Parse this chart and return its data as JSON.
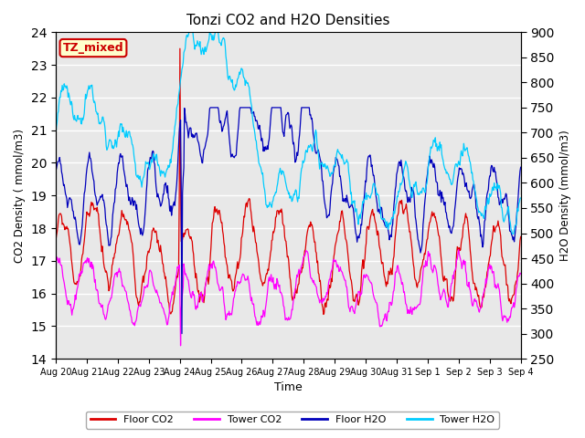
{
  "title": "Tonzi CO2 and H2O Densities",
  "xlabel": "Time",
  "ylabel_left": "CO2 Density ( mmol/m3)",
  "ylabel_right": "H2O Density (mmol/m3)",
  "ylim_left": [
    14.0,
    24.0
  ],
  "ylim_right": [
    250,
    900
  ],
  "yticks_left": [
    14.0,
    15.0,
    16.0,
    17.0,
    18.0,
    19.0,
    20.0,
    21.0,
    22.0,
    23.0,
    24.0
  ],
  "yticks_right": [
    250,
    300,
    350,
    400,
    450,
    500,
    550,
    600,
    650,
    700,
    750,
    800,
    850,
    900
  ],
  "annotation_text": "TZ_mixed",
  "annotation_color": "#cc0000",
  "colors": {
    "floor_co2": "#dd0000",
    "tower_co2": "#ff00ff",
    "floor_h2o": "#0000bb",
    "tower_h2o": "#00ccff"
  },
  "legend_labels": [
    "Floor CO2",
    "Tower CO2",
    "Floor H2O",
    "Tower H2O"
  ],
  "x_tick_labels": [
    "Aug 20",
    "Aug 21",
    "Aug 22",
    "Aug 23",
    "Aug 24",
    "Aug 25",
    "Aug 26",
    "Aug 27",
    "Aug 28",
    "Aug 29",
    "Aug 30",
    "Aug 31",
    "Sep 1",
    "Sep 2",
    "Sep 3",
    "Sep 4"
  ],
  "background_color": "#e8e8e8",
  "grid_color": "#ffffff",
  "fig_facecolor": "#ffffff"
}
